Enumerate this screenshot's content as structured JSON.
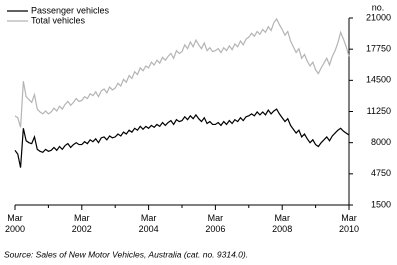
{
  "chart_data": {
    "type": "line",
    "y_unit": "no.",
    "source": "Source: Sales of New Motor Vehicles, Australia (cat. no. 9314.0).",
    "categories": [
      "Mar 2000",
      null,
      null,
      null,
      null,
      null,
      null,
      null,
      null,
      null,
      null,
      null,
      null,
      null,
      null,
      null,
      null,
      null,
      null,
      null,
      null,
      null,
      null,
      null,
      "Mar 2002",
      null,
      null,
      null,
      null,
      null,
      null,
      null,
      null,
      null,
      null,
      null,
      null,
      null,
      null,
      null,
      null,
      null,
      null,
      null,
      null,
      null,
      null,
      null,
      "Mar 2004",
      null,
      null,
      null,
      null,
      null,
      null,
      null,
      null,
      null,
      null,
      null,
      null,
      null,
      null,
      null,
      null,
      null,
      null,
      null,
      null,
      null,
      null,
      null,
      "Mar 2006",
      null,
      null,
      null,
      null,
      null,
      null,
      null,
      null,
      null,
      null,
      null,
      null,
      null,
      null,
      null,
      null,
      null,
      null,
      null,
      null,
      null,
      null,
      null,
      "Mar 2008",
      null,
      null,
      null,
      null,
      null,
      null,
      null,
      null,
      null,
      null,
      null,
      null,
      null,
      null,
      null,
      null,
      null,
      null,
      null,
      null,
      null,
      null,
      null,
      "Mar 2010"
    ],
    "series": [
      {
        "name": "Passenger vehicles",
        "color": "#000000",
        "values": [
          7200,
          6800,
          5400,
          9500,
          8200,
          8000,
          7900,
          8600,
          7300,
          7100,
          7000,
          7300,
          7100,
          7200,
          7500,
          7200,
          7600,
          7300,
          7700,
          7900,
          7500,
          7800,
          8000,
          7800,
          7800,
          8100,
          7900,
          8300,
          8100,
          8400,
          8000,
          8500,
          8600,
          8300,
          8700,
          8500,
          8600,
          8900,
          8700,
          9100,
          8900,
          9300,
          9100,
          9500,
          9300,
          9700,
          9400,
          9700,
          9500,
          9800,
          9600,
          9900,
          9700,
          10100,
          9800,
          10100,
          10300,
          9900,
          10400,
          10200,
          10300,
          10700,
          10400,
          10800,
          10500,
          10900,
          10500,
          10200,
          10600,
          10000,
          10200,
          9900,
          9900,
          10100,
          9800,
          10200,
          9900,
          10300,
          10000,
          10400,
          10200,
          10600,
          10300,
          10700,
          10800,
          11000,
          10800,
          11200,
          10900,
          11200,
          10900,
          11400,
          11000,
          11300,
          11500,
          11000,
          10600,
          10200,
          10500,
          9800,
          9400,
          9000,
          9300,
          8600,
          8900,
          8400,
          8000,
          8300,
          7800,
          7600,
          8000,
          8300,
          8600,
          8200,
          8700,
          9000,
          9300,
          9500,
          9200,
          9000,
          8800
        ]
      },
      {
        "name": "Total vehicles",
        "color": "#b4b4b4",
        "values": [
          10800,
          10600,
          9600,
          14400,
          12800,
          12500,
          12200,
          13000,
          11500,
          11200,
          11000,
          11300,
          11000,
          11200,
          11600,
          11300,
          11800,
          11500,
          12000,
          12300,
          11900,
          12200,
          12600,
          12300,
          12400,
          12800,
          12600,
          13100,
          12900,
          13300,
          12800,
          13400,
          13600,
          13200,
          13800,
          13500,
          13700,
          14200,
          13900,
          14600,
          14300,
          15000,
          14700,
          15400,
          15100,
          15800,
          15500,
          16000,
          15800,
          16400,
          16100,
          16600,
          16300,
          16900,
          16600,
          17000,
          17300,
          16800,
          17600,
          17300,
          17500,
          18200,
          17800,
          18500,
          18000,
          18700,
          18200,
          17800,
          18400,
          17600,
          17900,
          17500,
          17600,
          17800,
          17400,
          17900,
          17600,
          18100,
          17700,
          18300,
          18000,
          18600,
          18200,
          18800,
          19000,
          19400,
          19100,
          19600,
          19300,
          19800,
          19500,
          20100,
          19700,
          20500,
          20900,
          20300,
          19800,
          19200,
          19600,
          18600,
          18000,
          17400,
          17800,
          16800,
          17200,
          16500,
          16000,
          16400,
          15600,
          15200,
          15800,
          16300,
          16800,
          16100,
          17000,
          17600,
          18400,
          19500,
          18800,
          18000,
          17000
        ]
      }
    ],
    "ylim": [
      1500,
      21000
    ],
    "yticks": [
      1500,
      4750,
      8000,
      11250,
      14500,
      17750,
      21000
    ],
    "grid": false,
    "legend": "top-left"
  }
}
